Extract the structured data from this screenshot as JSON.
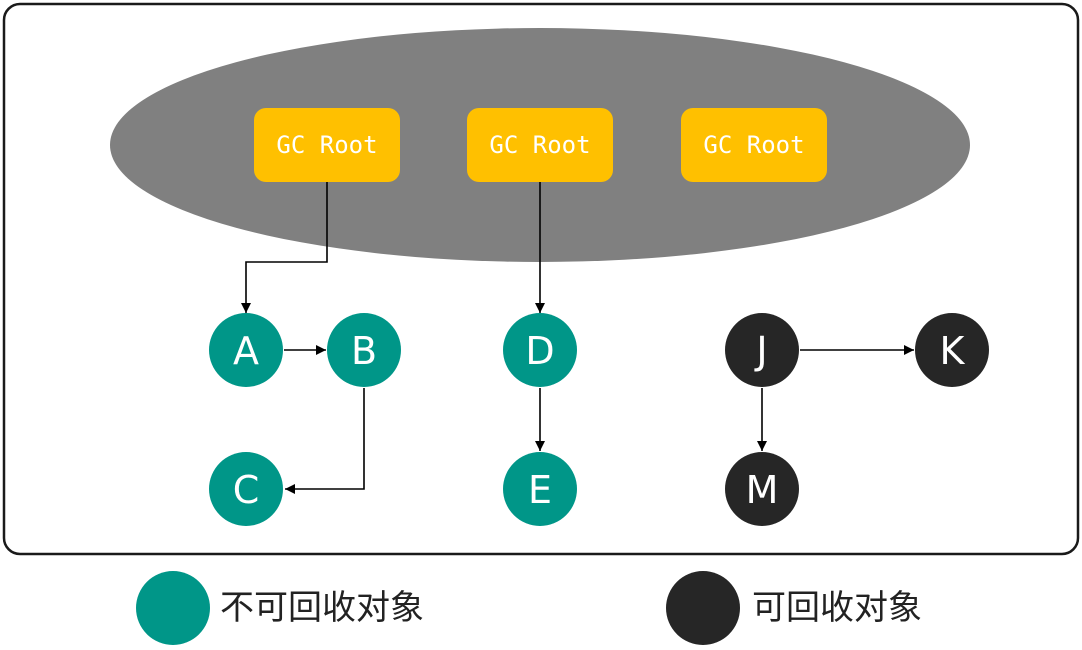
{
  "colors": {
    "frame_border": "#1a1a1a",
    "ellipse": "#808080",
    "gc_root": "#FFC000",
    "reachable": "#009688",
    "unreachable": "#262626",
    "edge": "#000000"
  },
  "gc_roots": [
    {
      "id": "root1",
      "label": "GC Root"
    },
    {
      "id": "root2",
      "label": "GC Root"
    },
    {
      "id": "root3",
      "label": "GC Root"
    }
  ],
  "nodes": [
    {
      "id": "A",
      "label": "A",
      "status": "reachable"
    },
    {
      "id": "B",
      "label": "B",
      "status": "reachable"
    },
    {
      "id": "C",
      "label": "C",
      "status": "reachable"
    },
    {
      "id": "D",
      "label": "D",
      "status": "reachable"
    },
    {
      "id": "E",
      "label": "E",
      "status": "reachable"
    },
    {
      "id": "J",
      "label": "J",
      "status": "unreachable"
    },
    {
      "id": "K",
      "label": "K",
      "status": "unreachable"
    },
    {
      "id": "M",
      "label": "M",
      "status": "unreachable"
    }
  ],
  "edges": [
    {
      "from": "root1",
      "to": "A"
    },
    {
      "from": "root2",
      "to": "D"
    },
    {
      "from": "A",
      "to": "B"
    },
    {
      "from": "B",
      "to": "C"
    },
    {
      "from": "D",
      "to": "E"
    },
    {
      "from": "J",
      "to": "K"
    },
    {
      "from": "J",
      "to": "M"
    }
  ],
  "legend": {
    "reachable_label": "不可回收对象",
    "unreachable_label": "可回收对象"
  }
}
